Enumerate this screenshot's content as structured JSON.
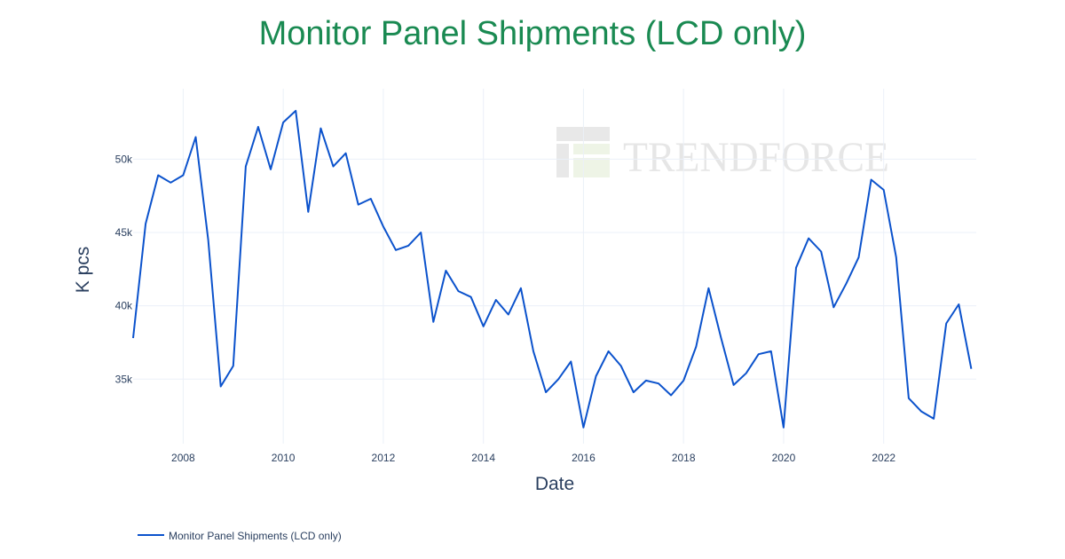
{
  "chart_data": {
    "type": "line",
    "title": "Monitor Panel Shipments (LCD only)",
    "xlabel": "Date",
    "ylabel": "K pcs",
    "xlim": [
      2007.0,
      2023.85
    ],
    "ylim": [
      30600,
      54800
    ],
    "x_ticks": [
      2008,
      2010,
      2012,
      2014,
      2016,
      2018,
      2020,
      2022
    ],
    "x_tick_labels": [
      "2008",
      "2010",
      "2012",
      "2014",
      "2016",
      "2018",
      "2020",
      "2022"
    ],
    "y_ticks": [
      35000,
      40000,
      45000,
      50000
    ],
    "y_tick_labels": [
      "35k",
      "40k",
      "45k",
      "50k"
    ],
    "grid": true,
    "legend_position": "bottom-left",
    "series": [
      {
        "name": "Monitor Panel Shipments (LCD only)",
        "color": "#0b52cc",
        "x": [
          2007.0,
          2007.25,
          2007.5,
          2007.75,
          2008.0,
          2008.25,
          2008.5,
          2008.75,
          2009.0,
          2009.25,
          2009.5,
          2009.75,
          2010.0,
          2010.25,
          2010.5,
          2010.75,
          2011.0,
          2011.25,
          2011.5,
          2011.75,
          2012.0,
          2012.25,
          2012.5,
          2012.75,
          2013.0,
          2013.25,
          2013.5,
          2013.75,
          2014.0,
          2014.25,
          2014.5,
          2014.75,
          2015.0,
          2015.25,
          2015.5,
          2015.75,
          2016.0,
          2016.25,
          2016.5,
          2016.75,
          2017.0,
          2017.25,
          2017.5,
          2017.75,
          2018.0,
          2018.25,
          2018.5,
          2018.75,
          2019.0,
          2019.25,
          2019.5,
          2019.75,
          2020.0,
          2020.25,
          2020.5,
          2020.75,
          2021.0,
          2021.25,
          2021.5,
          2021.75,
          2022.0,
          2022.25,
          2022.5,
          2022.75,
          2023.0,
          2023.25,
          2023.5,
          2023.75
        ],
        "values": [
          37800,
          45600,
          48900,
          48400,
          48900,
          51500,
          44500,
          34500,
          35900,
          49500,
          52200,
          49300,
          52500,
          53300,
          46400,
          52100,
          49500,
          50400,
          46900,
          47300,
          45400,
          43800,
          44100,
          45000,
          38900,
          42400,
          41000,
          40600,
          38600,
          40400,
          39400,
          41200,
          36900,
          34100,
          35000,
          36200,
          31700,
          35200,
          36900,
          35900,
          34100,
          34900,
          34700,
          33900,
          34900,
          37200,
          41200,
          37800,
          34600,
          35400,
          36700,
          36900,
          31700,
          42600,
          44600,
          43700,
          39900,
          41500,
          43300,
          48600,
          47900,
          43300,
          33700,
          32800,
          32300,
          38800,
          40100,
          35700
        ]
      }
    ]
  },
  "watermark": {
    "logo_text": "TRENDFORCE"
  }
}
